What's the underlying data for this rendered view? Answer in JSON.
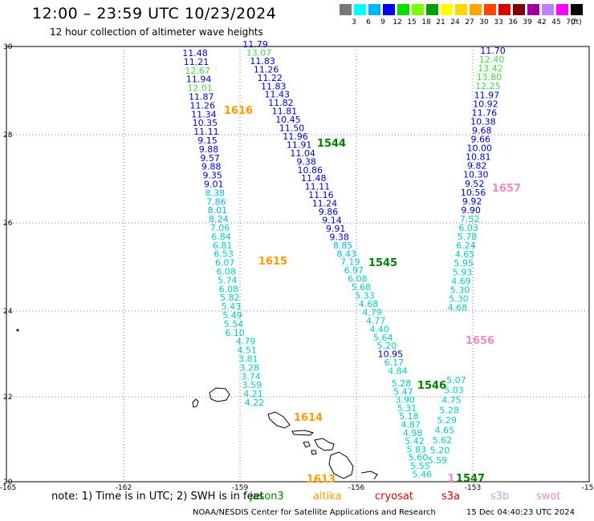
{
  "title": "12:00 – 23:59 UTC 10/23/2024",
  "subtitle": "12 hour collection of altimeter wave heights",
  "legend": {
    "ticks": [
      "3",
      "6",
      "9",
      "12",
      "15",
      "18",
      "21",
      "24",
      "27",
      "30",
      "33",
      "36",
      "39",
      "42",
      "45",
      "70"
    ],
    "unit": "(ft)",
    "colors": [
      "#777777",
      "#00ffff",
      "#00b3ff",
      "#0000ff",
      "#00e000",
      "#7cfc00",
      "#00a000",
      "#ffff00",
      "#ffd700",
      "#ffa500",
      "#ff4500",
      "#dd0000",
      "#800000",
      "#a000a0",
      "#c080ff",
      "#ff00ff",
      "#000000"
    ]
  },
  "axes": {
    "lon": [
      "-165",
      "-162",
      "-159",
      "-156",
      "-153",
      "-15"
    ],
    "lat": [
      "30",
      "28",
      "26",
      "24",
      "22",
      "20"
    ]
  },
  "passes": [
    {
      "id": "1616",
      "color": "#ff9900"
    },
    {
      "id": "1615",
      "color": "#ff9900"
    },
    {
      "id": "1614",
      "color": "#ff9900"
    },
    {
      "id": "1613",
      "color": "#ff9900"
    },
    {
      "id": "1544",
      "color": "#008000"
    },
    {
      "id": "1545",
      "color": "#008000"
    },
    {
      "id": "1546",
      "color": "#008000"
    },
    {
      "id": "1547",
      "color": "#008000"
    },
    {
      "id": "1657",
      "color": "#ee88cc"
    },
    {
      "id": "1656",
      "color": "#ee88cc"
    },
    {
      "id": "1",
      "color": "#ee88cc"
    }
  ],
  "tracks": [
    {
      "name": "track-west",
      "values": [
        {
          "v": "11.48",
          "c": "#0000cc"
        },
        {
          "v": "11.21",
          "c": "#0000cc"
        },
        {
          "v": "12.67",
          "c": "#44dd44"
        },
        {
          "v": "11.94",
          "c": "#0000cc"
        },
        {
          "v": "12.01",
          "c": "#44dd44"
        },
        {
          "v": "11.87",
          "c": "#0000cc"
        },
        {
          "v": "11.26",
          "c": "#0000cc"
        },
        {
          "v": "11.34",
          "c": "#0000cc"
        },
        {
          "v": "10.35",
          "c": "#0000cc"
        },
        {
          "v": "11.11",
          "c": "#0000cc"
        },
        {
          "v": "9.15",
          "c": "#0000cc"
        },
        {
          "v": "9.88",
          "c": "#0000cc"
        },
        {
          "v": "9.57",
          "c": "#0000cc"
        },
        {
          "v": "9.88",
          "c": "#0000cc"
        },
        {
          "v": "9.35",
          "c": "#0000cc"
        },
        {
          "v": "9.01",
          "c": "#0000cc"
        },
        {
          "v": "8.38",
          "c": "#00bbee"
        },
        {
          "v": "7.86",
          "c": "#00bbee"
        },
        {
          "v": "8.01",
          "c": "#00bbee"
        },
        {
          "v": "8.24",
          "c": "#00bbee"
        },
        {
          "v": "7.06",
          "c": "#00cccc"
        },
        {
          "v": "6.84",
          "c": "#00cccc"
        },
        {
          "v": "6.81",
          "c": "#00cccc"
        },
        {
          "v": "6.53",
          "c": "#00cccc"
        },
        {
          "v": "6.07",
          "c": "#00cccc"
        },
        {
          "v": "6.08",
          "c": "#00cccc"
        },
        {
          "v": "5.74",
          "c": "#00cccc"
        },
        {
          "v": "6.08",
          "c": "#00cccc"
        },
        {
          "v": "5.82",
          "c": "#00cccc"
        },
        {
          "v": "5.43",
          "c": "#00cccc"
        },
        {
          "v": "5.49",
          "c": "#00cccc"
        },
        {
          "v": "5.54",
          "c": "#00cccc"
        },
        {
          "v": "6.10",
          "c": "#00cccc"
        },
        {
          "v": "4.79",
          "c": "#00cccc"
        },
        {
          "v": "4.51",
          "c": "#00cccc"
        },
        {
          "v": "3.81",
          "c": "#00cccc"
        },
        {
          "v": "3.28",
          "c": "#00cccc"
        },
        {
          "v": "3.74",
          "c": "#00cccc"
        },
        {
          "v": "3.59",
          "c": "#00cccc"
        },
        {
          "v": "4.21",
          "c": "#00cccc"
        },
        {
          "v": "4.22",
          "c": "#00cccc"
        }
      ]
    },
    {
      "name": "track-middle",
      "values": [
        {
          "v": "11.79",
          "c": "#0000cc"
        },
        {
          "v": "13.07",
          "c": "#44dd44"
        },
        {
          "v": "11.83",
          "c": "#0000cc"
        },
        {
          "v": "11.26",
          "c": "#0000cc"
        },
        {
          "v": "11.22",
          "c": "#0000cc"
        },
        {
          "v": "11.83",
          "c": "#0000cc"
        },
        {
          "v": "11.43",
          "c": "#0000cc"
        },
        {
          "v": "11.82",
          "c": "#0000cc"
        },
        {
          "v": "11.81",
          "c": "#0000cc"
        },
        {
          "v": "10.45",
          "c": "#0000cc"
        },
        {
          "v": "11.50",
          "c": "#0000cc"
        },
        {
          "v": "11.96",
          "c": "#0000cc"
        },
        {
          "v": "11.91",
          "c": "#0000cc"
        },
        {
          "v": "11.04",
          "c": "#0000cc"
        },
        {
          "v": "9.38",
          "c": "#0000cc"
        },
        {
          "v": "10.86",
          "c": "#0000cc"
        },
        {
          "v": "11.48",
          "c": "#0000cc"
        },
        {
          "v": "11.11",
          "c": "#0000cc"
        },
        {
          "v": "11.16",
          "c": "#0000cc"
        },
        {
          "v": "11.24",
          "c": "#0000cc"
        },
        {
          "v": "9.86",
          "c": "#0000cc"
        },
        {
          "v": "9.14",
          "c": "#0000cc"
        },
        {
          "v": "9.91",
          "c": "#0000cc"
        },
        {
          "v": "9.38",
          "c": "#0000cc"
        },
        {
          "v": "8.85",
          "c": "#00bbee"
        },
        {
          "v": "8.43",
          "c": "#00bbee"
        },
        {
          "v": "7.19",
          "c": "#00cccc"
        },
        {
          "v": "6.97",
          "c": "#00cccc"
        },
        {
          "v": "6.08",
          "c": "#00cccc"
        },
        {
          "v": "5.68",
          "c": "#00cccc"
        },
        {
          "v": "5.33",
          "c": "#00cccc"
        },
        {
          "v": "4.68",
          "c": "#00cccc"
        },
        {
          "v": "4.79",
          "c": "#00cccc"
        },
        {
          "v": "4.77",
          "c": "#00cccc"
        },
        {
          "v": "4.40",
          "c": "#00cccc"
        },
        {
          "v": "5.64",
          "c": "#00cccc"
        },
        {
          "v": "5.20",
          "c": "#00cccc"
        },
        {
          "v": "10.95",
          "c": "#0000cc"
        },
        {
          "v": "6.17",
          "c": "#00cccc"
        },
        {
          "v": "4.84",
          "c": "#00cccc"
        },
        {
          "v": "5.28",
          "c": "#00cccc"
        },
        {
          "v": "5.47",
          "c": "#00cccc"
        },
        {
          "v": "3.90",
          "c": "#00cccc"
        },
        {
          "v": "5.31",
          "c": "#00cccc"
        },
        {
          "v": "5.18",
          "c": "#00cccc"
        },
        {
          "v": "4.87",
          "c": "#00cccc"
        },
        {
          "v": "4.98",
          "c": "#00cccc"
        },
        {
          "v": "5.42",
          "c": "#00cccc"
        },
        {
          "v": "5.83",
          "c": "#00cccc"
        },
        {
          "v": "5.60",
          "c": "#00cccc"
        },
        {
          "v": "5.55",
          "c": "#00cccc"
        },
        {
          "v": "5.46",
          "c": "#00cccc"
        }
      ]
    },
    {
      "name": "track-east",
      "values": [
        {
          "v": "11.70",
          "c": "#0000cc"
        },
        {
          "v": "12.40",
          "c": "#44dd44"
        },
        {
          "v": "13.42",
          "c": "#44dd44"
        },
        {
          "v": "13.80",
          "c": "#44dd44"
        },
        {
          "v": "12.25",
          "c": "#44dd44"
        },
        {
          "v": "11.97",
          "c": "#0000cc"
        },
        {
          "v": "10.92",
          "c": "#0000cc"
        },
        {
          "v": "11.76",
          "c": "#0000cc"
        },
        {
          "v": "10.38",
          "c": "#0000cc"
        },
        {
          "v": "9.68",
          "c": "#0000cc"
        },
        {
          "v": "9.66",
          "c": "#0000cc"
        },
        {
          "v": "10.00",
          "c": "#0000cc"
        },
        {
          "v": "10.81",
          "c": "#0000cc"
        },
        {
          "v": "9.82",
          "c": "#0000cc"
        },
        {
          "v": "10.30",
          "c": "#0000cc"
        },
        {
          "v": "9.52",
          "c": "#0000cc"
        },
        {
          "v": "10.56",
          "c": "#0000cc"
        },
        {
          "v": "9.92",
          "c": "#0000cc"
        },
        {
          "v": "9.90",
          "c": "#0000cc"
        },
        {
          "v": "7.52",
          "c": "#00cccc"
        },
        {
          "v": "6.03",
          "c": "#00cccc"
        },
        {
          "v": "5.78",
          "c": "#00cccc"
        },
        {
          "v": "6.24",
          "c": "#00cccc"
        },
        {
          "v": "4.65",
          "c": "#00cccc"
        },
        {
          "v": "5.95",
          "c": "#00cccc"
        },
        {
          "v": "5.93",
          "c": "#00cccc"
        },
        {
          "v": "4.69",
          "c": "#00cccc"
        },
        {
          "v": "5.30",
          "c": "#00cccc"
        },
        {
          "v": "5.30",
          "c": "#00cccc"
        },
        {
          "v": "4.68",
          "c": "#00cccc"
        },
        {
          "v": "5.07",
          "c": "#00cccc"
        },
        {
          "v": "5.03",
          "c": "#00cccc"
        },
        {
          "v": "4.75",
          "c": "#00cccc"
        },
        {
          "v": "5.28",
          "c": "#00cccc"
        },
        {
          "v": "5.29",
          "c": "#00cccc"
        },
        {
          "v": "4.65",
          "c": "#00cccc"
        },
        {
          "v": "5.62",
          "c": "#00cccc"
        },
        {
          "v": "5.20",
          "c": "#00cccc"
        },
        {
          "v": "5.59",
          "c": "#00cccc"
        }
      ]
    }
  ],
  "note": "note:  1) Time is in UTC;  2) SWH is in feet",
  "satellites": [
    {
      "name": "jason3",
      "color": "#008000"
    },
    {
      "name": "altika",
      "color": "#ff9900"
    },
    {
      "name": "cryosat",
      "color": "#ee0000"
    },
    {
      "name": "s3a",
      "color": "#cc0000"
    },
    {
      "name": "s3b",
      "color": "#aaaaee"
    },
    {
      "name": "swot",
      "color": "#ee88cc"
    }
  ],
  "footer": "NOAA/NESDIS Center for Satellite Applications and Research",
  "footer_date": "15 Dec 04:40:23 UTC 2024"
}
